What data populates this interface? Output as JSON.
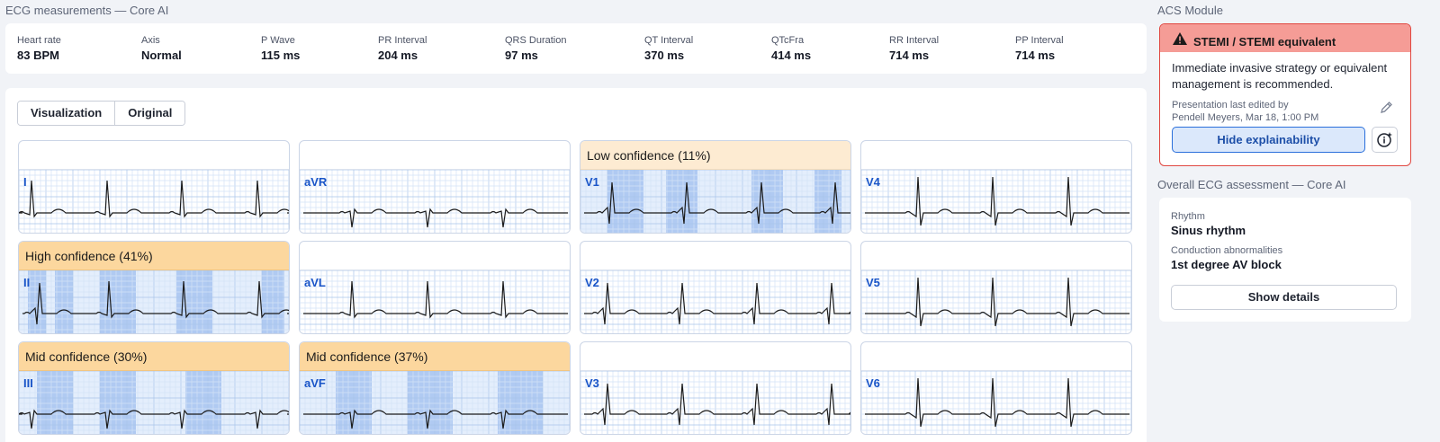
{
  "measurements": {
    "title": "ECG measurements — Core AI",
    "items": [
      {
        "label": "Heart rate",
        "value": "83 BPM"
      },
      {
        "label": "Axis",
        "value": "Normal"
      },
      {
        "label": "P Wave",
        "value": "115 ms"
      },
      {
        "label": "PR Interval",
        "value": "204 ms"
      },
      {
        "label": "QRS Duration",
        "value": "97 ms"
      },
      {
        "label": "QT Interval",
        "value": "370 ms"
      },
      {
        "label": "QTcFra",
        "value": "414 ms"
      },
      {
        "label": "RR Interval",
        "value": "714 ms"
      },
      {
        "label": "PP Interval",
        "value": "714 ms"
      }
    ]
  },
  "view_toggle": {
    "visualization": "Visualization",
    "original": "Original"
  },
  "leads": [
    {
      "name": "I",
      "confidence": ""
    },
    {
      "name": "aVR",
      "confidence": ""
    },
    {
      "name": "V1",
      "confidence": "Low confidence (11%)"
    },
    {
      "name": "V4",
      "confidence": ""
    },
    {
      "name": "II",
      "confidence": "High confidence (41%)"
    },
    {
      "name": "aVL",
      "confidence": ""
    },
    {
      "name": "V2",
      "confidence": ""
    },
    {
      "name": "V5",
      "confidence": ""
    },
    {
      "name": "III",
      "confidence": "Mid confidence (30%)"
    },
    {
      "name": "aVF",
      "confidence": "Mid confidence (37%)"
    },
    {
      "name": "V3",
      "confidence": ""
    },
    {
      "name": "V6",
      "confidence": ""
    }
  ],
  "acs": {
    "title": "ACS Module",
    "banner": "STEMI / STEMI equivalent",
    "message": "Immediate invasive strategy or equivalent management is recommended.",
    "edited_line1": "Presentation last edited by",
    "edited_line2": "Pendell Meyers, Mar 18, 1:00 PM",
    "hide_button": "Hide explainability",
    "warning_icon": "warning-triangle-icon",
    "edit_icon": "pencil-icon",
    "info_icon": "info-sparkle-icon",
    "alert_color": "#e0463f"
  },
  "overall": {
    "title": "Overall ECG assessment — Core AI",
    "rhythm_label": "Rhythm",
    "rhythm_value": "Sinus rhythm",
    "conduction_label": "Conduction abnormalities",
    "conduction_value": "1st degree AV block",
    "details_button": "Show details"
  },
  "colors": {
    "lead_label": "#1a55c8",
    "high_confidence": "#fcd79e",
    "low_confidence": "#fdebd2",
    "heat": "#2c6ed6"
  }
}
